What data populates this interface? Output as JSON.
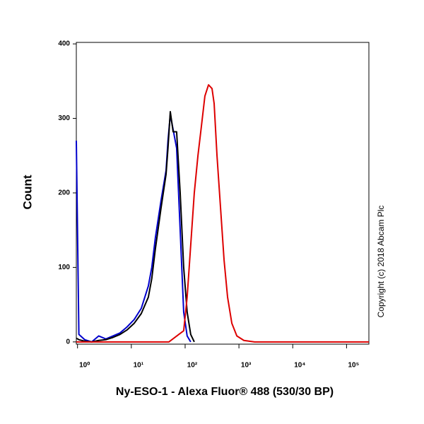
{
  "chart_data": {
    "type": "line",
    "x_label": "Ny-ESO-1 - Alexa Fluor® 488 (530/30 BP)",
    "y_label": "Count",
    "annotation": "Copyright (c) 2018 Abcam Plc",
    "x_scale": "log",
    "xlim": [
      0.95,
      260000
    ],
    "ylim": [
      -3,
      402
    ],
    "xticks": [
      {
        "value": 1,
        "label": "10⁰"
      },
      {
        "value": 10,
        "label": "10¹"
      },
      {
        "value": 100,
        "label": "10²"
      },
      {
        "value": 1000,
        "label": "10³"
      },
      {
        "value": 10000,
        "label": "10⁴"
      },
      {
        "value": 100000,
        "label": "10⁵"
      }
    ],
    "yticks": [
      0,
      100,
      200,
      300,
      400
    ],
    "series": [
      {
        "color": "#0000cc",
        "x": [
          0.95,
          1.06,
          1.36,
          1.83,
          2.48,
          3.36,
          4.55,
          6.15,
          8.3,
          11.3,
          15.3,
          20.7,
          24,
          28,
          35.7,
          44.2,
          48,
          53,
          59.8,
          69.5,
          80.9,
          94,
          109,
          127
        ],
        "values": [
          270,
          10,
          3,
          0,
          8,
          4,
          8,
          12,
          20,
          30,
          45,
          75,
          100,
          140,
          190,
          230,
          270,
          305,
          285,
          260,
          150,
          40,
          8,
          0
        ]
      },
      {
        "color": "#000000",
        "x": [
          0.95,
          1.06,
          1.36,
          1.83,
          2.48,
          3.36,
          4.55,
          6.15,
          8.3,
          11.3,
          15.3,
          20.7,
          24,
          28,
          35.7,
          44.2,
          48,
          53,
          59.8,
          69.5,
          80.9,
          94,
          109,
          127,
          148
        ],
        "values": [
          5,
          3,
          1,
          0,
          2,
          3,
          6,
          10,
          16,
          25,
          38,
          60,
          85,
          125,
          180,
          225,
          260,
          309,
          282,
          282,
          200,
          100,
          40,
          10,
          0
        ]
      },
      {
        "color": "#dd0000",
        "x": [
          0.95,
          50,
          94,
          109,
          127,
          148,
          173,
          201,
          233,
          272,
          316,
          346,
          391,
          455,
          529,
          615,
          738,
          914,
          1236,
          1950,
          260000
        ],
        "values": [
          0,
          0,
          15,
          60,
          130,
          200,
          250,
          290,
          330,
          345,
          340,
          320,
          250,
          180,
          110,
          60,
          25,
          8,
          2,
          0,
          0
        ]
      }
    ]
  }
}
